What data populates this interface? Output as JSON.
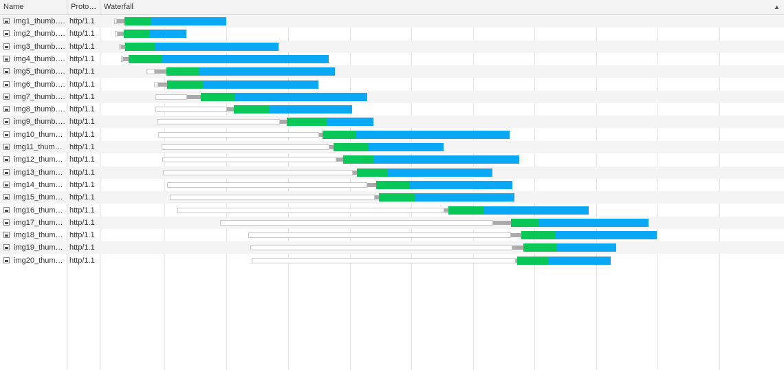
{
  "header": {
    "name_label": "Name",
    "protocol_label": "Proto…",
    "waterfall_label": "Waterfall",
    "sort_icon": "▲"
  },
  "colors": {
    "ttfb": "#0ac858",
    "download": "#0ba8f5",
    "blocked": "#aaaaaa",
    "queued": "#ffffff"
  },
  "requests": [
    {
      "name": "img1_thumb….",
      "protocol": "http/1.1"
    },
    {
      "name": "img2_thumb….",
      "protocol": "http/1.1"
    },
    {
      "name": "img3_thumb….",
      "protocol": "http/1.1"
    },
    {
      "name": "img4_thumb….",
      "protocol": "http/1.1"
    },
    {
      "name": "img5_thumb….",
      "protocol": "http/1.1"
    },
    {
      "name": "img6_thumb….",
      "protocol": "http/1.1"
    },
    {
      "name": "img7_thumb….",
      "protocol": "http/1.1"
    },
    {
      "name": "img8_thumb….",
      "protocol": "http/1.1"
    },
    {
      "name": "img9_thumb….",
      "protocol": "http/1.1"
    },
    {
      "name": "img10_thum…",
      "protocol": "http/1.1"
    },
    {
      "name": "img11_thum…",
      "protocol": "http/1.1"
    },
    {
      "name": "img12_thum…",
      "protocol": "http/1.1"
    },
    {
      "name": "img13_thum…",
      "protocol": "http/1.1"
    },
    {
      "name": "img14_thum…",
      "protocol": "http/1.1"
    },
    {
      "name": "img15_thum…",
      "protocol": "http/1.1"
    },
    {
      "name": "img16_thum…",
      "protocol": "http/1.1"
    },
    {
      "name": "img17_thum…",
      "protocol": "http/1.1"
    },
    {
      "name": "img18_thum…",
      "protocol": "http/1.1"
    },
    {
      "name": "img19_thum…",
      "protocol": "http/1.1"
    },
    {
      "name": "img20_thum…",
      "protocol": "http/1.1"
    }
  ]
}
